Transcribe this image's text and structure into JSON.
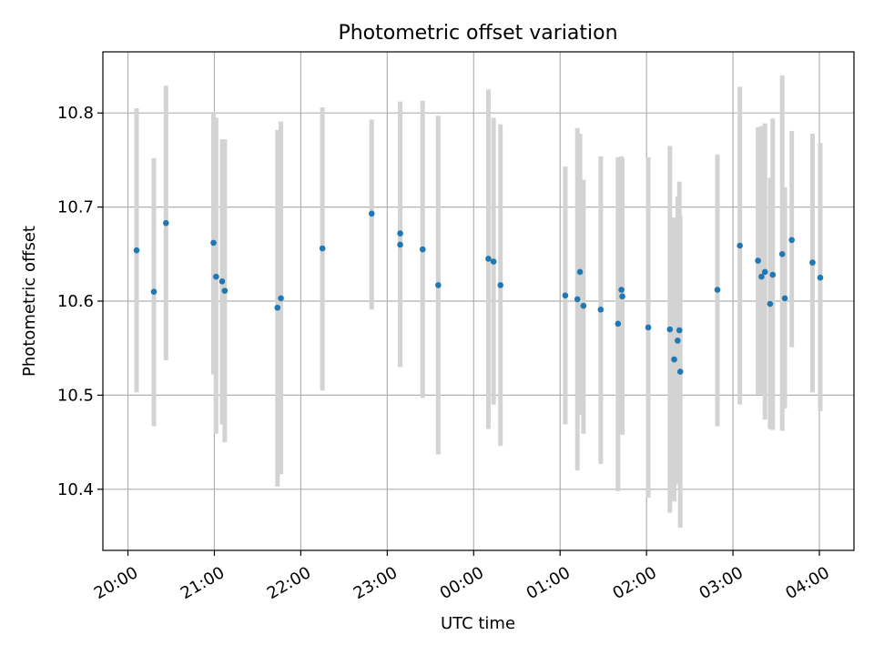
{
  "chart_data": {
    "type": "scatter",
    "title": "Photometric offset variation",
    "xlabel": "UTC time",
    "ylabel": "Photometric offset",
    "x_unit": "hours relative to 00:00 UTC (negative = previous day)",
    "xlim": [
      -4.29,
      4.4
    ],
    "ylim": [
      10.335,
      10.865
    ],
    "grid": true,
    "x_ticks": [
      {
        "value": -4,
        "label": "20:00"
      },
      {
        "value": -3,
        "label": "21:00"
      },
      {
        "value": -2,
        "label": "22:00"
      },
      {
        "value": -1,
        "label": "23:00"
      },
      {
        "value": 0,
        "label": "00:00"
      },
      {
        "value": 1,
        "label": "01:00"
      },
      {
        "value": 2,
        "label": "02:00"
      },
      {
        "value": 3,
        "label": "03:00"
      },
      {
        "value": 4,
        "label": "04:00"
      }
    ],
    "y_ticks": [
      {
        "value": 10.4,
        "label": "10.4"
      },
      {
        "value": 10.5,
        "label": "10.5"
      },
      {
        "value": 10.6,
        "label": "10.6"
      },
      {
        "value": 10.7,
        "label": "10.7"
      },
      {
        "value": 10.8,
        "label": "10.8"
      }
    ],
    "colors": {
      "point": "#1f77b4",
      "errorbar": "#d3d3d3",
      "grid": "#b0b0b0"
    },
    "points": [
      {
        "x": -3.9,
        "y": 10.654,
        "ylo": 10.503,
        "yhi": 10.805
      },
      {
        "x": -3.7,
        "y": 10.61,
        "ylo": 10.467,
        "yhi": 10.752
      },
      {
        "x": -3.56,
        "y": 10.683,
        "ylo": 10.537,
        "yhi": 10.829
      },
      {
        "x": -3.01,
        "y": 10.662,
        "ylo": 10.522,
        "yhi": 10.801
      },
      {
        "x": -2.98,
        "y": 10.626,
        "ylo": 10.459,
        "yhi": 10.795
      },
      {
        "x": -2.91,
        "y": 10.621,
        "ylo": 10.469,
        "yhi": 10.772
      },
      {
        "x": -2.88,
        "y": 10.611,
        "ylo": 10.45,
        "yhi": 10.772
      },
      {
        "x": -2.27,
        "y": 10.593,
        "ylo": 10.403,
        "yhi": 10.782
      },
      {
        "x": -2.23,
        "y": 10.603,
        "ylo": 10.416,
        "yhi": 10.791
      },
      {
        "x": -1.75,
        "y": 10.656,
        "ylo": 10.505,
        "yhi": 10.806
      },
      {
        "x": -1.18,
        "y": 10.693,
        "ylo": 10.591,
        "yhi": 10.793
      },
      {
        "x": -0.85,
        "y": 10.672,
        "ylo": 10.53,
        "yhi": 10.812
      },
      {
        "x": -0.85,
        "y": 10.66,
        "ylo": 10.53,
        "yhi": 10.812
      },
      {
        "x": -0.59,
        "y": 10.655,
        "ylo": 10.497,
        "yhi": 10.813
      },
      {
        "x": -0.41,
        "y": 10.617,
        "ylo": 10.437,
        "yhi": 10.797
      },
      {
        "x": 0.17,
        "y": 10.645,
        "ylo": 10.464,
        "yhi": 10.825
      },
      {
        "x": 0.23,
        "y": 10.642,
        "ylo": 10.49,
        "yhi": 10.795
      },
      {
        "x": 0.31,
        "y": 10.617,
        "ylo": 10.446,
        "yhi": 10.788
      },
      {
        "x": 1.06,
        "y": 10.606,
        "ylo": 10.469,
        "yhi": 10.743
      },
      {
        "x": 1.2,
        "y": 10.602,
        "ylo": 10.42,
        "yhi": 10.784
      },
      {
        "x": 1.23,
        "y": 10.631,
        "ylo": 10.479,
        "yhi": 10.778
      },
      {
        "x": 1.27,
        "y": 10.595,
        "ylo": 10.459,
        "yhi": 10.729
      },
      {
        "x": 1.47,
        "y": 10.591,
        "ylo": 10.427,
        "yhi": 10.754
      },
      {
        "x": 1.67,
        "y": 10.576,
        "ylo": 10.398,
        "yhi": 10.753
      },
      {
        "x": 1.71,
        "y": 10.612,
        "ylo": 10.471,
        "yhi": 10.754
      },
      {
        "x": 1.72,
        "y": 10.605,
        "ylo": 10.458,
        "yhi": 10.752
      },
      {
        "x": 2.02,
        "y": 10.572,
        "ylo": 10.391,
        "yhi": 10.753
      },
      {
        "x": 2.27,
        "y": 10.57,
        "ylo": 10.375,
        "yhi": 10.765
      },
      {
        "x": 2.32,
        "y": 10.538,
        "ylo": 10.387,
        "yhi": 10.689
      },
      {
        "x": 2.36,
        "y": 10.558,
        "ylo": 10.405,
        "yhi": 10.711
      },
      {
        "x": 2.38,
        "y": 10.569,
        "ylo": 10.411,
        "yhi": 10.727
      },
      {
        "x": 2.39,
        "y": 10.525,
        "ylo": 10.359,
        "yhi": 10.691
      },
      {
        "x": 2.82,
        "y": 10.612,
        "ylo": 10.467,
        "yhi": 10.756
      },
      {
        "x": 3.08,
        "y": 10.659,
        "ylo": 10.49,
        "yhi": 10.828
      },
      {
        "x": 3.29,
        "y": 10.643,
        "ylo": 10.501,
        "yhi": 10.785
      },
      {
        "x": 3.33,
        "y": 10.626,
        "ylo": 10.501,
        "yhi": 10.786
      },
      {
        "x": 3.37,
        "y": 10.631,
        "ylo": 10.474,
        "yhi": 10.789
      },
      {
        "x": 3.43,
        "y": 10.597,
        "ylo": 10.464,
        "yhi": 10.731
      },
      {
        "x": 3.46,
        "y": 10.628,
        "ylo": 10.463,
        "yhi": 10.794
      },
      {
        "x": 3.57,
        "y": 10.65,
        "ylo": 10.462,
        "yhi": 10.84
      },
      {
        "x": 3.6,
        "y": 10.603,
        "ylo": 10.486,
        "yhi": 10.721
      },
      {
        "x": 3.68,
        "y": 10.665,
        "ylo": 10.551,
        "yhi": 10.781
      },
      {
        "x": 3.92,
        "y": 10.641,
        "ylo": 10.503,
        "yhi": 10.778
      },
      {
        "x": 4.01,
        "y": 10.625,
        "ylo": 10.483,
        "yhi": 10.768
      }
    ]
  }
}
